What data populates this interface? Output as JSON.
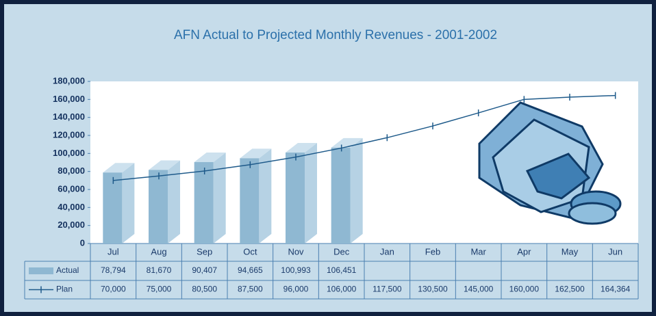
{
  "chart_data": {
    "type": "bar-line-table",
    "title": "AFN Actual to Projected Monthly Revenues - 2001-2002",
    "categories": [
      "Jul",
      "Aug",
      "Sep",
      "Oct",
      "Nov",
      "Dec",
      "Jan",
      "Feb",
      "Mar",
      "Apr",
      "May",
      "Jun"
    ],
    "series": [
      {
        "name": "Actual",
        "type": "bar",
        "color": "#8fb8d2",
        "values": [
          78794,
          81670,
          90407,
          94665,
          100993,
          106451,
          null,
          null,
          null,
          null,
          null,
          null
        ],
        "value_labels": [
          "78,794",
          "81,670",
          "90,407",
          "94,665",
          "100,993",
          "106,451",
          null,
          null,
          null,
          null,
          null,
          null
        ]
      },
      {
        "name": "Plan",
        "type": "line",
        "color": "#1e5a8a",
        "values": [
          70000,
          75000,
          80500,
          87500,
          96000,
          106000,
          117500,
          130500,
          145000,
          160000,
          162500,
          164364
        ],
        "value_labels": [
          "70,000",
          "75,000",
          "80,500",
          "87,500",
          "96,000",
          "106,000",
          "117,500",
          "130,500",
          "145,000",
          "160,000",
          "162,500",
          "164,364"
        ]
      }
    ],
    "ylim": [
      0,
      180000
    ],
    "yticks": [
      0,
      {
        "value": 20000,
        "label": "20,000"
      },
      {
        "value": 40000,
        "label": "40,000"
      },
      {
        "value": 60000,
        "label": "60,000"
      },
      {
        "value": 80000,
        "label": "80,000"
      },
      {
        "value": 100000,
        "label": "100,000"
      },
      {
        "value": 120000,
        "label": "120,000"
      },
      {
        "value": 140000,
        "label": "140,000"
      },
      {
        "value": 160000,
        "label": "160,000"
      },
      {
        "value": 180000,
        "label": "180,000"
      }
    ],
    "grid": false
  }
}
